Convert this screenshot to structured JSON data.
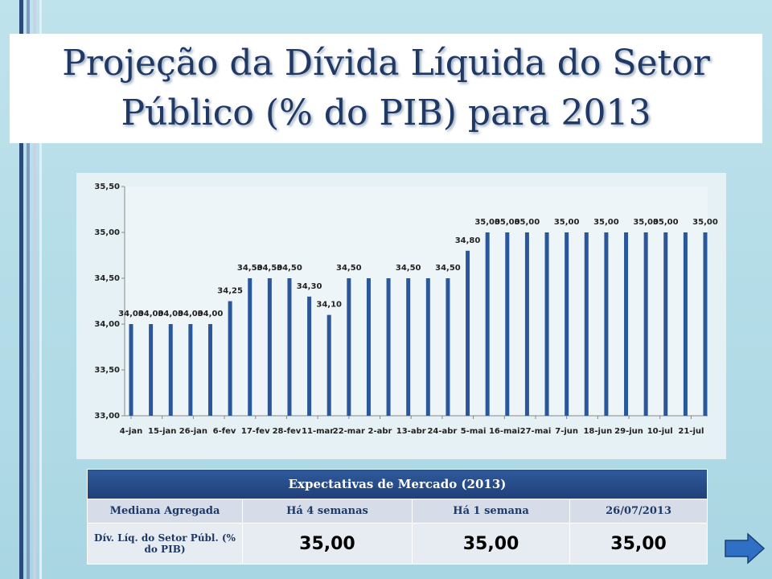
{
  "title": "Projeção da Dívida Líquida do Setor Público (% do PIB) para 2013",
  "chart_data": {
    "type": "bar",
    "x": [
      4,
      11,
      18,
      25,
      32,
      39,
      46,
      53,
      60,
      67,
      74,
      81,
      88,
      95,
      102,
      109,
      116,
      123,
      130,
      137,
      144,
      151,
      158,
      165,
      172,
      179,
      186,
      193,
      200,
      207
    ],
    "values": [
      34,
      34,
      34,
      34,
      34,
      34.25,
      34.5,
      34.5,
      34.5,
      34.3,
      34.1,
      34.5,
      34.5,
      34.5,
      34.5,
      34.5,
      34.5,
      34.8,
      35,
      35,
      35,
      35,
      35,
      35,
      35,
      35,
      35,
      35,
      35,
      35
    ],
    "value_labels": [
      "34,00",
      "34,00",
      "34,00",
      "34,00",
      "34,00",
      "34,25",
      "34,50",
      "34,50",
      "34,50",
      "34,30",
      "34,10",
      "34,50",
      null,
      null,
      "34,50",
      null,
      "34,50",
      "34,80",
      "35,00",
      "35,00",
      "35,00",
      null,
      "35,00",
      null,
      "35,00",
      null,
      "35,00",
      "35,00",
      null,
      "35,00"
    ],
    "color": "#2a569b",
    "xlim": [
      4,
      207
    ],
    "xticks": [
      {
        "value": 4,
        "label": "4-jan"
      },
      {
        "value": 15,
        "label": "15-jan"
      },
      {
        "value": 26,
        "label": "26-jan"
      },
      {
        "value": 37,
        "label": "6-fev"
      },
      {
        "value": 48,
        "label": "17-fev"
      },
      {
        "value": 59,
        "label": "28-fev"
      },
      {
        "value": 70,
        "label": "11-mar"
      },
      {
        "value": 81,
        "label": "22-mar"
      },
      {
        "value": 92,
        "label": "2-abr"
      },
      {
        "value": 103,
        "label": "13-abr"
      },
      {
        "value": 114,
        "label": "24-abr"
      },
      {
        "value": 125,
        "label": "5-mai"
      },
      {
        "value": 136,
        "label": "16-mai"
      },
      {
        "value": 147,
        "label": "27-mai"
      },
      {
        "value": 158,
        "label": "7-jun"
      },
      {
        "value": 169,
        "label": "18-jun"
      },
      {
        "value": 180,
        "label": "29-jun"
      },
      {
        "value": 191,
        "label": "10-jul"
      },
      {
        "value": 202,
        "label": "21-jul"
      }
    ],
    "ylim": [
      33,
      35.5
    ],
    "yticks": [
      {
        "value": 33,
        "label": "33,00"
      },
      {
        "value": 33.5,
        "label": "33,50"
      },
      {
        "value": 34,
        "label": "34,00"
      },
      {
        "value": 34.5,
        "label": "34,50"
      },
      {
        "value": 35,
        "label": "35,00"
      },
      {
        "value": 35.5,
        "label": "35,50"
      }
    ],
    "grid": false
  },
  "table": {
    "caption": "Expectativas de Mercado (2013)",
    "header": [
      "Mediana Agregada",
      "Há 4 semanas",
      "Há 1 semana",
      "26/07/2013"
    ],
    "rows": [
      [
        "Dív. Líq. do Setor Públ. (% do PIB)",
        "35,00",
        "35,00",
        "35,00"
      ]
    ]
  }
}
